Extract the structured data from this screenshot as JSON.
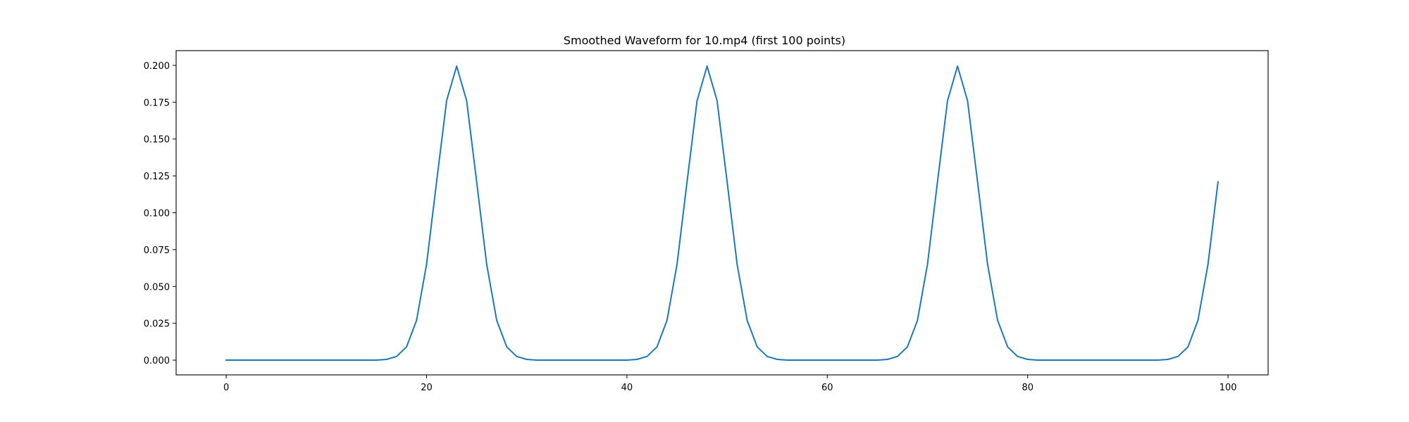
{
  "chart_data": {
    "type": "line",
    "title": "Smoothed Waveform for 10.mp4 (first 100 points)",
    "xlabel": "",
    "ylabel": "",
    "xlim": [
      -5,
      104
    ],
    "ylim": [
      -0.01,
      0.21
    ],
    "xticks": [
      0,
      20,
      40,
      60,
      80,
      100
    ],
    "xtick_labels": [
      "0",
      "20",
      "40",
      "60",
      "80",
      "100"
    ],
    "yticks": [
      0,
      0.025,
      0.05,
      0.075,
      0.1,
      0.125,
      0.15,
      0.175,
      0.2
    ],
    "ytick_labels": [
      "0.000",
      "0.025",
      "0.050",
      "0.075",
      "0.100",
      "0.125",
      "0.150",
      "0.175",
      "0.200"
    ],
    "grid": false,
    "line_color": "#1f77b4",
    "series": [
      {
        "x": [
          0,
          1,
          2,
          3,
          4,
          5,
          6,
          7,
          8,
          9,
          10,
          11,
          12,
          13,
          14,
          15,
          16,
          17,
          18,
          19,
          20,
          21,
          22,
          23,
          24,
          25,
          26,
          27,
          28,
          29,
          30,
          31,
          32,
          33,
          34,
          35,
          36,
          37,
          38,
          39,
          40,
          41,
          42,
          43,
          44,
          45,
          46,
          47,
          48,
          49,
          50,
          51,
          52,
          53,
          54,
          55,
          56,
          57,
          58,
          59,
          60,
          61,
          62,
          63,
          64,
          65,
          66,
          67,
          68,
          69,
          70,
          71,
          72,
          73,
          74,
          75,
          76,
          77,
          78,
          79,
          80,
          81,
          82,
          83,
          84,
          85,
          86,
          87,
          88,
          89,
          90,
          91,
          92,
          93,
          94,
          95,
          96,
          97,
          98,
          99
        ],
        "y": [
          0,
          0,
          0,
          0,
          0,
          0,
          0,
          0,
          0,
          0,
          0,
          0,
          0,
          0,
          0,
          0,
          0.0005,
          0.0025,
          0.009,
          0.027,
          0.065,
          0.121,
          0.176,
          0.1995,
          0.176,
          0.121,
          0.065,
          0.027,
          0.009,
          0.0025,
          0.0005,
          0,
          0,
          0,
          0,
          0,
          0,
          0,
          0,
          0,
          0,
          0.0005,
          0.0025,
          0.009,
          0.027,
          0.065,
          0.121,
          0.176,
          0.1995,
          0.176,
          0.121,
          0.065,
          0.027,
          0.009,
          0.0025,
          0.0005,
          0,
          0,
          0,
          0,
          0,
          0,
          0,
          0,
          0,
          0,
          0.0005,
          0.0025,
          0.009,
          0.027,
          0.065,
          0.121,
          0.176,
          0.1995,
          0.176,
          0.121,
          0.065,
          0.027,
          0.009,
          0.0025,
          0.0005,
          0,
          0,
          0,
          0,
          0,
          0,
          0,
          0,
          0,
          0,
          0,
          0,
          0,
          0.0005,
          0.0025,
          0.009,
          0.027,
          0.065,
          0.121
        ]
      }
    ]
  }
}
